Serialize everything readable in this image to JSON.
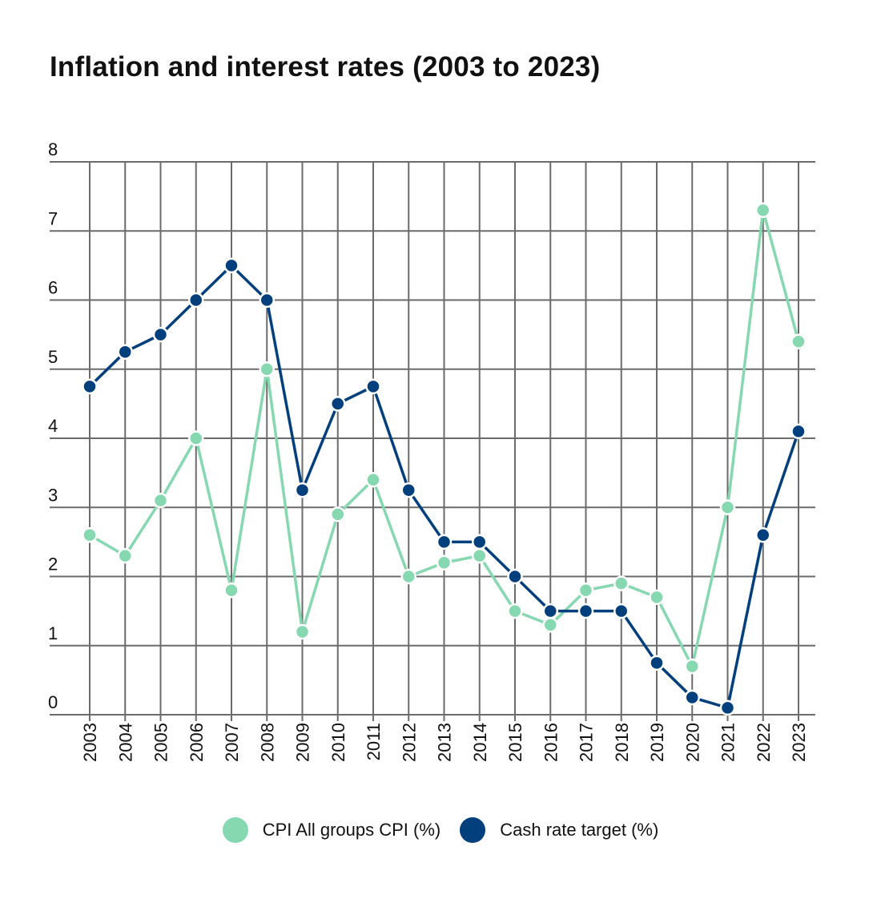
{
  "chart_data": {
    "type": "line",
    "title": "Inflation and interest rates (2003 to 2023)",
    "xlabel": "",
    "ylabel": "",
    "categories": [
      "2003",
      "2004",
      "2005",
      "2006",
      "2007",
      "2008",
      "2009",
      "2010",
      "2011",
      "2012",
      "2013",
      "2014",
      "2015",
      "2016",
      "2017",
      "2018",
      "2019",
      "2020",
      "2021",
      "2022",
      "2023"
    ],
    "ylim": [
      0,
      8
    ],
    "yticks": [
      "0",
      "1",
      "2",
      "3",
      "4",
      "5",
      "6",
      "7",
      "8"
    ],
    "grid": true,
    "legend_position": "bottom",
    "series": [
      {
        "name": "CPI All groups CPI (%)",
        "color": "#86d8b0",
        "values": [
          2.6,
          2.3,
          3.1,
          4.0,
          1.8,
          5.0,
          1.2,
          2.9,
          3.4,
          2.0,
          2.2,
          2.3,
          1.5,
          1.3,
          1.8,
          1.9,
          1.7,
          0.7,
          3.0,
          7.3,
          5.4
        ]
      },
      {
        "name": "Cash rate target (%)",
        "color": "#023f7d",
        "values": [
          4.75,
          5.25,
          5.5,
          6.0,
          6.5,
          6.0,
          3.25,
          4.5,
          4.75,
          3.25,
          2.5,
          2.5,
          2.0,
          1.5,
          1.5,
          1.5,
          0.75,
          0.25,
          0.1,
          2.6,
          4.1
        ]
      }
    ]
  }
}
